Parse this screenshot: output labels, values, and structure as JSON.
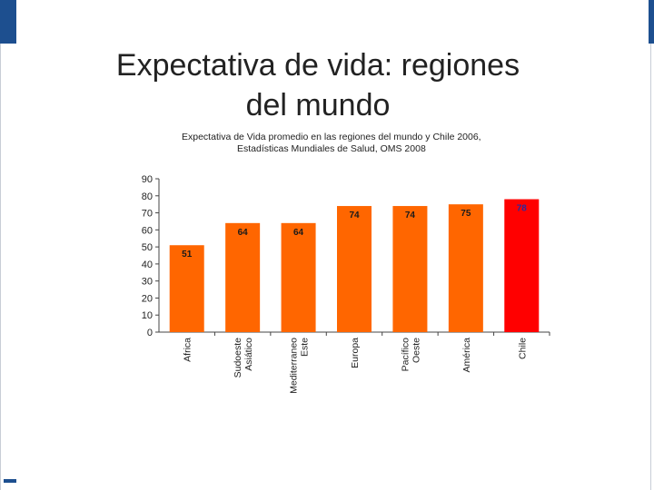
{
  "slide": {
    "title_line1": "Expectativa de vida: regiones",
    "title_line2": "del mundo"
  },
  "chart_data": {
    "type": "bar",
    "title": "Expectativa de Vida promedio en las regiones del mundo y Chile 2006,",
    "subtitle": "Estadísticas Mundiales de Salud, OMS 2008",
    "categories": [
      [
        "Africa"
      ],
      [
        "Sudoeste",
        "Asiático"
      ],
      [
        "Mediterraneo",
        "Este"
      ],
      [
        "Europa"
      ],
      [
        "Pacífico",
        "Oeste"
      ],
      [
        "América"
      ],
      [
        "Chile"
      ]
    ],
    "values": [
      51,
      64,
      64,
      74,
      74,
      75,
      78
    ],
    "bar_colors": [
      "#ff6600",
      "#ff6600",
      "#ff6600",
      "#ff6600",
      "#ff6600",
      "#ff6600",
      "#ff0000"
    ],
    "label_colors": [
      "#1a1a1a",
      "#1a1a1a",
      "#1a1a1a",
      "#1a1a1a",
      "#1a1a1a",
      "#1a1a1a",
      "#2a2aa0"
    ],
    "ylim": [
      0,
      90
    ],
    "yticks": [
      0,
      10,
      20,
      30,
      40,
      50,
      60,
      70,
      80,
      90
    ],
    "xlabel": "",
    "ylabel": ""
  }
}
